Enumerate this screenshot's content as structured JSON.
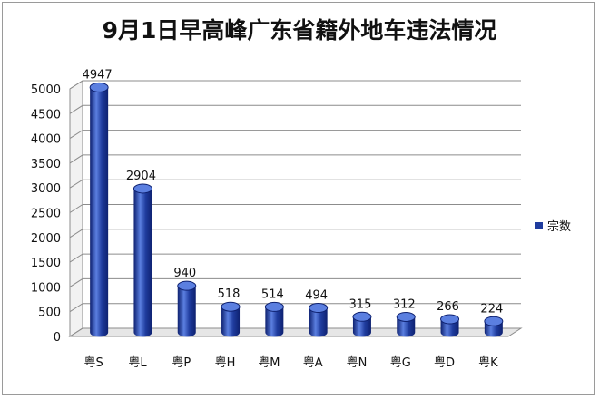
{
  "chart_data": {
    "type": "bar",
    "title": "9月1日早高峰广东省籍外地车违法情况",
    "categories": [
      "粤S",
      "粤L",
      "粤P",
      "粤H",
      "粤M",
      "粤A",
      "粤N",
      "粤G",
      "粤D",
      "粤K"
    ],
    "series": [
      {
        "name": "宗数",
        "values": [
          4947,
          2904,
          940,
          518,
          514,
          494,
          315,
          312,
          266,
          224
        ]
      }
    ],
    "data_labels": [
      "4947",
      "2904",
      "940",
      "518",
      "514",
      "494",
      "315",
      "312",
      "266",
      "224"
    ],
    "ylim": [
      0,
      5000
    ],
    "yticks": [
      0,
      500,
      1000,
      1500,
      2000,
      2500,
      3000,
      3500,
      4000,
      4500,
      5000
    ],
    "ytick_labels": [
      "0",
      "500",
      "1000",
      "1500",
      "2000",
      "2500",
      "3000",
      "3500",
      "4000",
      "4500",
      "5000"
    ],
    "grid": true,
    "legend_position": "right",
    "bar_color": "#1f3c9e",
    "bar_dark": "#0e2170",
    "bar_light": "#5b7fe0"
  }
}
